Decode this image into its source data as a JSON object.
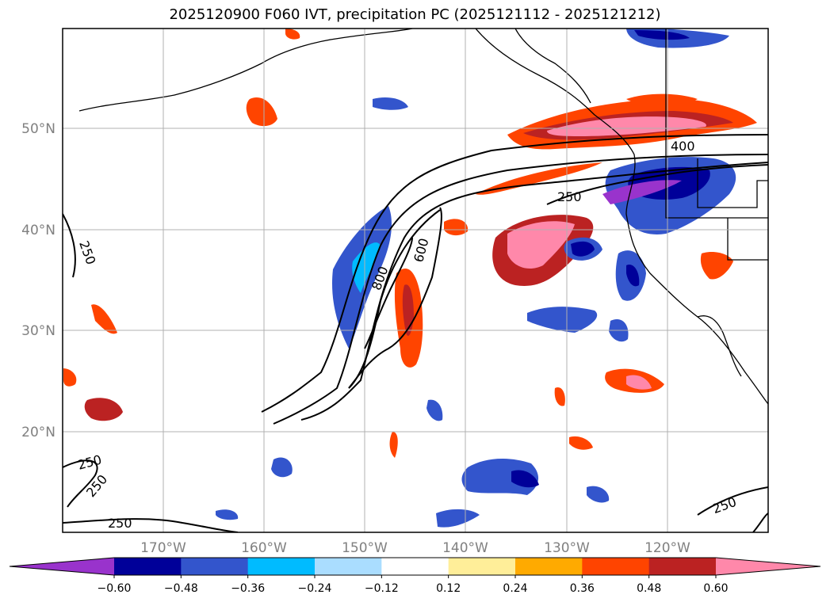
{
  "title": "2025120900 F060 IVT, precipitation PC (2025121112 - 2025121212)",
  "map": {
    "lat_ticks": [
      "50°N",
      "40°N",
      "30°N",
      "20°N"
    ],
    "lon_ticks": [
      "170°W",
      "160°W",
      "150°W",
      "140°W",
      "130°W",
      "120°W"
    ],
    "contour_labels": [
      "250",
      "400",
      "600",
      "800",
      "250",
      "250",
      "250",
      "250",
      "250"
    ]
  },
  "colorbar": {
    "colors": [
      "#9933cc",
      "#000099",
      "#3355cc",
      "#00bbff",
      "#aaddff",
      "#ffffff",
      "#ffee99",
      "#ffaa00",
      "#ff4400",
      "#bb2222",
      "#ff88aa"
    ],
    "tick_labels": [
      "−0.60",
      "−0.48",
      "−0.36",
      "−0.24",
      "−0.12",
      "0.12",
      "0.24",
      "0.36",
      "0.48",
      "0.60"
    ]
  }
}
